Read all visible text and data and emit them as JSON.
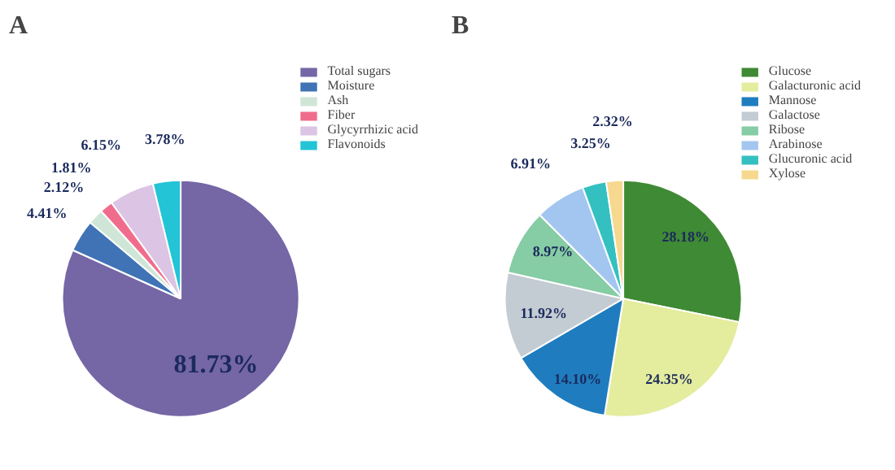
{
  "chart_data": [
    {
      "type": "pie",
      "title": "A",
      "categories": [
        "Total sugars",
        "Moisture",
        "Ash",
        "Fiber",
        "Glycyrrhizic acid",
        "Flavonoids"
      ],
      "values": [
        81.73,
        4.41,
        2.12,
        1.81,
        6.15,
        3.78
      ],
      "colors": [
        "#7566a6",
        "#3f73b5",
        "#cfe6d6",
        "#f06c8c",
        "#dcc4e4",
        "#22c4d6"
      ],
      "value_labels": [
        "81.73%",
        "4.41%",
        "2.12%",
        "1.81%",
        "6.15%",
        "3.78%"
      ],
      "legend": "top right"
    },
    {
      "type": "pie",
      "title": "B",
      "categories": [
        "Glucose",
        "Galacturonic acid",
        "Mannose",
        "Galactose",
        "Ribose",
        "Arabinose",
        "Glucuronic acid",
        "Xylose"
      ],
      "values": [
        28.18,
        24.35,
        14.1,
        11.92,
        8.97,
        6.91,
        3.25,
        2.32
      ],
      "colors": [
        "#3f8a34",
        "#e4ec9e",
        "#1f7dbf",
        "#c3cbd3",
        "#86cca4",
        "#a2c6f0",
        "#34c0c0",
        "#f6d88e"
      ],
      "value_labels": [
        "28.18%",
        "24.35%",
        "14.10%",
        "11.92%",
        "8.97%",
        "6.91%",
        "3.25%",
        "2.32%"
      ],
      "legend": "top right"
    }
  ]
}
